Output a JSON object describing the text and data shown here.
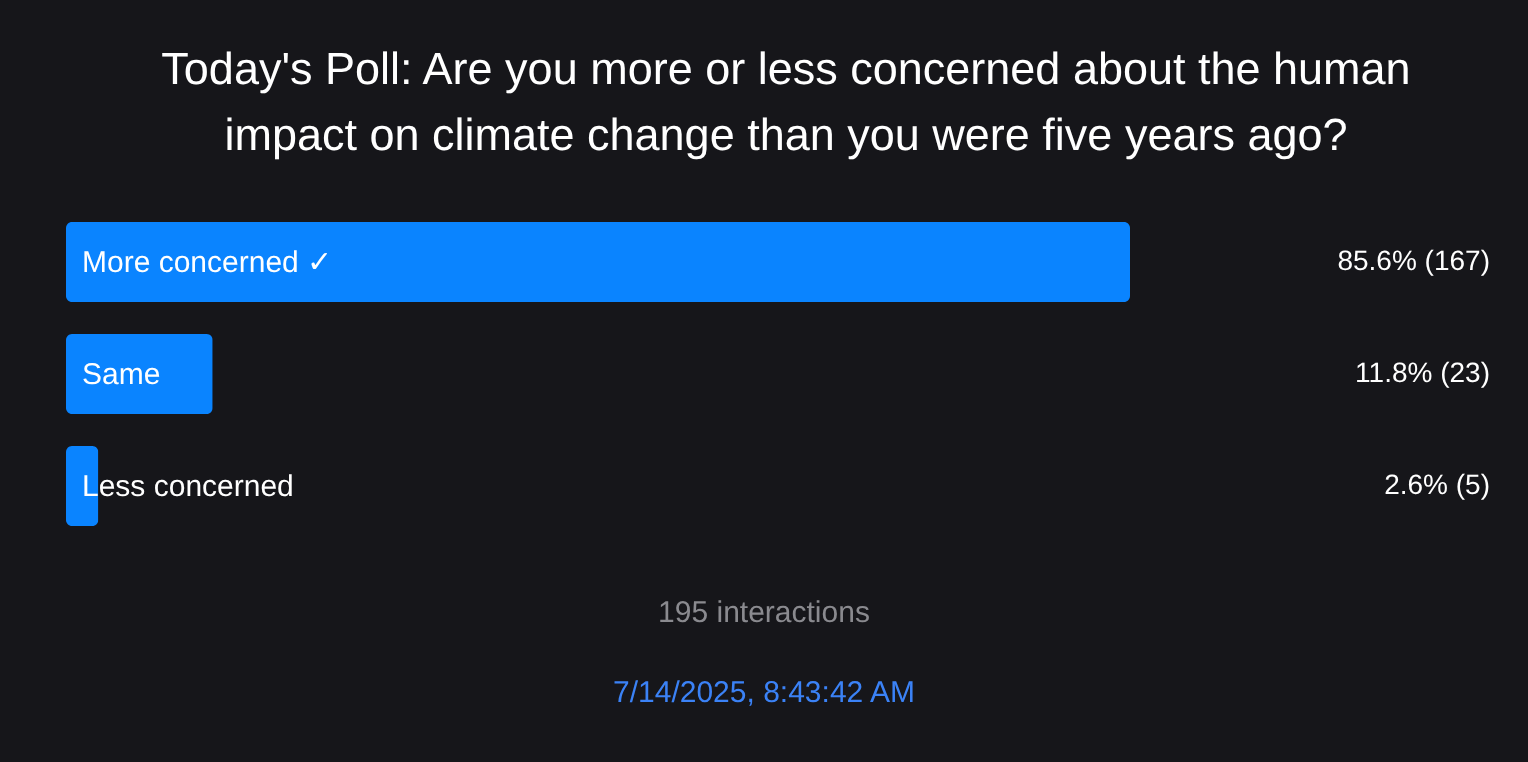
{
  "chart_data": {
    "type": "bar",
    "orientation": "horizontal",
    "title": "Today's Poll: Are you more or less concerned about the human impact on climate change than you were five years ago?",
    "categories": [
      "More concerned ✓",
      "Same",
      "Less concerned"
    ],
    "values": [
      85.6,
      11.8,
      2.6
    ],
    "value_labels": [
      "85.6% (167)",
      "11.8% (23)",
      "2.6% (5)"
    ],
    "color": "#0a84ff",
    "tick_labels": false,
    "annotations": [
      "195 interactions",
      "7/14/2025, 8:43:42 AM"
    ]
  }
}
